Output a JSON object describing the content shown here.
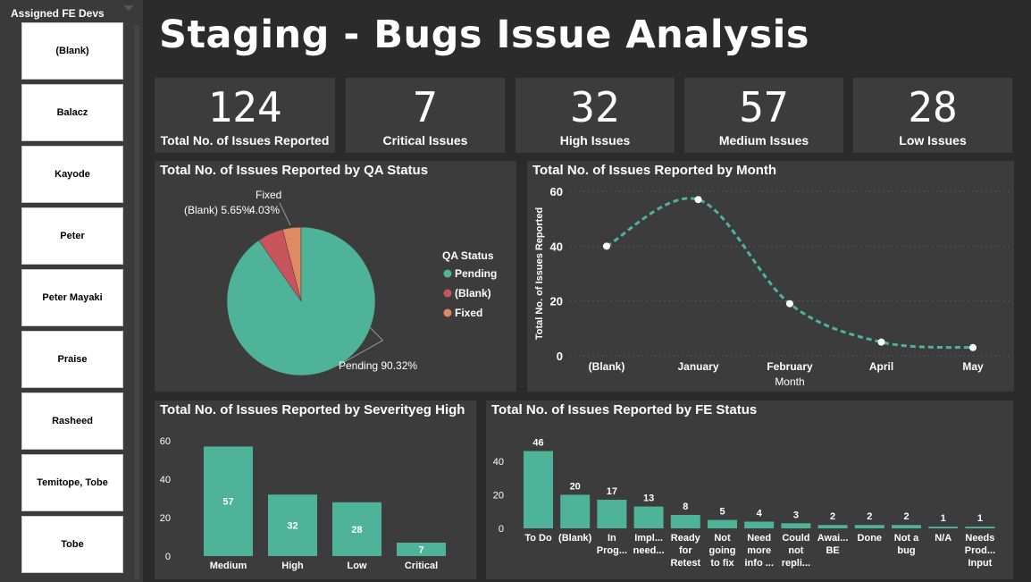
{
  "title": "Staging - Bugs Issue Analysis",
  "slicer": {
    "header": "Assigned FE Devs",
    "items": [
      "(Blank)",
      "Balacz",
      "Kayode",
      "Peter",
      "Peter Mayaki",
      "Praise",
      "Rasheed",
      "Temitope, Tobe",
      "Tobe"
    ]
  },
  "cards": [
    {
      "value": "124",
      "label": "Total No. of Issues Reported"
    },
    {
      "value": "7",
      "label": "Critical Issues"
    },
    {
      "value": "32",
      "label": "High Issues"
    },
    {
      "value": "57",
      "label": "Medium Issues"
    },
    {
      "value": "28",
      "label": "Low Issues"
    }
  ],
  "colors": {
    "teal": "#4fb39a",
    "red": "#c8545c",
    "orange": "#e08a63",
    "panel": "#3c3c3c",
    "bg": "#2b2b2b"
  },
  "chart_data": [
    {
      "type": "pie",
      "title": "Total No. of Issues Reported by QA Status",
      "legend_title": "QA Status",
      "legend_position": "right",
      "slices": [
        {
          "name": "Pending",
          "value": 90.32,
          "label": "Pending 90.32%",
          "color": "#4fb39a"
        },
        {
          "name": "(Blank)",
          "value": 5.65,
          "label": "(Blank) 5.65%",
          "color": "#c8545c"
        },
        {
          "name": "Fixed",
          "value": 4.03,
          "label": "4.03%",
          "color": "#e08a63"
        }
      ],
      "fixed_label": "Fixed"
    },
    {
      "type": "line",
      "title": "Total No. of Issues Reported by Month",
      "xlabel": "Month",
      "ylabel": "Total No. of Issues Reported",
      "categories": [
        "(Blank)",
        "January",
        "February",
        "April",
        "May"
      ],
      "values": [
        40,
        57,
        19,
        5,
        3
      ],
      "ylim": [
        0,
        60
      ],
      "yticks": [
        0,
        20,
        40,
        60
      ],
      "grid": true
    },
    {
      "type": "bar",
      "title": "Total No. of Issues Reported by Severityeg High",
      "categories": [
        "Medium",
        "High",
        "Low",
        "Critical"
      ],
      "values": [
        57,
        32,
        28,
        7
      ],
      "ylim": [
        0,
        60
      ],
      "yticks": [
        0,
        20,
        40,
        60
      ]
    },
    {
      "type": "bar",
      "title": "Total No. of Issues Reported by FE Status",
      "categories": [
        [
          "To Do"
        ],
        [
          "(Blank)"
        ],
        [
          "In",
          "Prog..."
        ],
        [
          "Impl...",
          "need..."
        ],
        [
          "Ready",
          "for",
          "Retest"
        ],
        [
          "Not",
          "going",
          "to fix"
        ],
        [
          "Need",
          "more",
          "info ..."
        ],
        [
          "Could",
          "not",
          "repli..."
        ],
        [
          "Awai...",
          "BE"
        ],
        [
          "Done"
        ],
        [
          "Not a",
          "bug"
        ],
        [
          "N/A"
        ],
        [
          "Needs",
          "Prod...",
          "Input"
        ]
      ],
      "values": [
        46,
        20,
        17,
        13,
        8,
        5,
        4,
        3,
        2,
        2,
        2,
        1,
        1
      ],
      "ylim": [
        0,
        50
      ],
      "yticks": [
        0,
        20,
        40
      ]
    }
  ]
}
